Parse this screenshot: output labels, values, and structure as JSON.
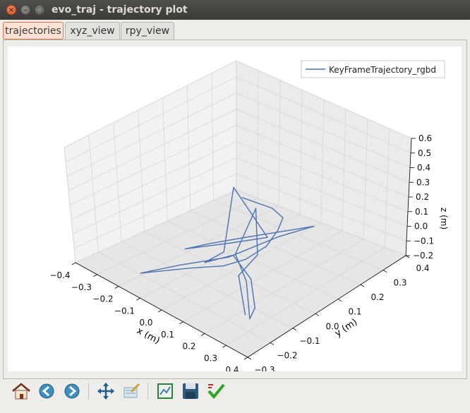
{
  "window": {
    "title": "evo_traj - trajectory plot"
  },
  "tabs": [
    {
      "label": "trajectories",
      "active": true
    },
    {
      "label": "xyz_view",
      "active": false
    },
    {
      "label": "rpy_view",
      "active": false
    }
  ],
  "toolbar": {
    "icons": [
      "home-icon",
      "back-arrow-icon",
      "forward-arrow-icon",
      "pan-move-icon",
      "zoom-rect-icon",
      "configure-subplots-icon",
      "save-icon",
      "edit-axes-check-icon"
    ]
  },
  "colors": {
    "series": "#4c72b0",
    "active_tab": "#e07648"
  },
  "chart_data": {
    "type": "line",
    "projection": "3d",
    "title": "",
    "legend": {
      "entries": [
        "KeyFrameTrajectory_rgbd"
      ],
      "placement": "top-right"
    },
    "xlabel": "x (m)",
    "ylabel": "y (m)",
    "zlabel": "z (m)",
    "xlim": [
      -0.4,
      0.4
    ],
    "ylim": [
      -0.3,
      0.4
    ],
    "zlim": [
      -0.2,
      0.6
    ],
    "x_ticks": [
      "−0.4",
      "−0.3",
      "−0.2",
      "−0.1",
      "0.0",
      "0.1",
      "0.2",
      "0.3",
      "0.4"
    ],
    "y_ticks": [
      "−0.3",
      "−0.2",
      "−0.1",
      "0.0",
      "0.1",
      "0.2",
      "0.3",
      "0.4"
    ],
    "z_ticks": [
      "−0.2",
      "−0.1",
      "0.0",
      "0.1",
      "0.2",
      "0.3",
      "0.4",
      "0.5",
      "0.6"
    ],
    "grid": true,
    "series": [
      {
        "name": "KeyFrameTrajectory_rgbd",
        "points": [
          [
            -0.2,
            0.25,
            0.02
          ],
          [
            -0.08,
            0.27,
            0.03
          ],
          [
            -0.02,
            0.26,
            0.02
          ],
          [
            0.02,
            0.2,
            0.01
          ],
          [
            0.05,
            0.12,
            -0.02
          ],
          [
            0.06,
            0.02,
            -0.03
          ],
          [
            0.03,
            -0.05,
            -0.05
          ],
          [
            -0.05,
            -0.12,
            -0.08
          ],
          [
            -0.18,
            -0.22,
            -0.15
          ],
          [
            -0.1,
            -0.12,
            -0.1
          ],
          [
            0.0,
            0.0,
            -0.05
          ],
          [
            0.08,
            0.15,
            0.05
          ],
          [
            0.14,
            0.25,
            0.1
          ],
          [
            0.08,
            0.22,
            0.05
          ],
          [
            -0.02,
            0.1,
            0.0
          ],
          [
            -0.1,
            0.02,
            -0.05
          ],
          [
            -0.15,
            -0.05,
            -0.08
          ],
          [
            -0.05,
            0.05,
            -0.03
          ],
          [
            0.06,
            0.12,
            0.05
          ],
          [
            0.0,
            0.05,
            0.4
          ],
          [
            -0.02,
            0.0,
            -0.03
          ],
          [
            -0.06,
            -0.05,
            -0.1
          ],
          [
            0.0,
            0.02,
            -0.05
          ],
          [
            0.1,
            0.0,
            -0.12
          ],
          [
            0.2,
            -0.08,
            -0.18
          ],
          [
            0.24,
            -0.14,
            -0.18
          ],
          [
            0.1,
            -0.02,
            -0.12
          ],
          [
            0.0,
            0.03,
            -0.05
          ],
          [
            0.04,
            0.1,
            0.25
          ],
          [
            0.05,
            0.08,
            -0.05
          ],
          [
            0.1,
            -0.05,
            -0.06
          ],
          [
            0.22,
            -0.14,
            -0.17
          ]
        ]
      }
    ]
  }
}
